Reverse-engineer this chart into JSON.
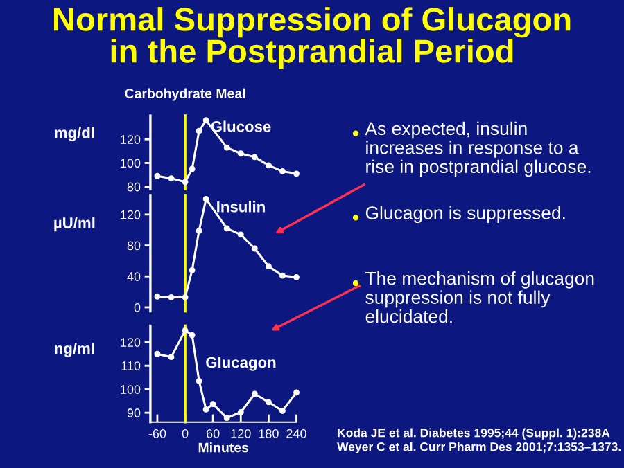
{
  "chart_data": [
    {
      "type": "line",
      "title": "Normal Suppression of Glucagon in the Postprandial Period",
      "ylabel": "mg/dl",
      "xlim": [
        -75,
        240
      ],
      "ylim": [
        78,
        140
      ],
      "yticks": [
        80,
        100,
        120
      ],
      "tick_labels": "y",
      "marker": "circle",
      "line_style": "solid",
      "grid": false,
      "ref_lines": [
        {
          "axis": "x",
          "value": 0,
          "label": "Carbohydrate Meal",
          "color": "#ffff00"
        }
      ],
      "series": [
        {
          "name": "Glucose",
          "color": "#ffffff",
          "x": [
            -60,
            -30,
            0,
            15,
            30,
            45,
            90,
            120,
            150,
            180,
            210,
            240
          ],
          "values": [
            89,
            87,
            84,
            95,
            127,
            136,
            113,
            108,
            105,
            98,
            93,
            91
          ]
        }
      ]
    },
    {
      "type": "line",
      "ylabel": "µU/ml",
      "xlim": [
        -75,
        240
      ],
      "ylim": [
        -5,
        145
      ],
      "yticks": [
        0,
        40,
        80,
        120
      ],
      "tick_labels": "y",
      "marker": "circle",
      "line_style": "solid",
      "grid": false,
      "ref_lines": [
        {
          "axis": "x",
          "value": 0,
          "color": "#ffff00"
        }
      ],
      "series": [
        {
          "name": "Insulin",
          "color": "#ffffff",
          "x": [
            -60,
            -30,
            0,
            15,
            30,
            45,
            90,
            120,
            150,
            180,
            210,
            240
          ],
          "values": [
            14,
            13,
            13,
            48,
            99,
            140,
            102,
            94,
            76,
            53,
            41,
            39
          ]
        }
      ]
    },
    {
      "type": "line",
      "ylabel": "ng/ml",
      "xlabel": "Minutes",
      "xlim": [
        -75,
        240
      ],
      "xticks": [
        -60,
        0,
        60,
        120,
        180,
        240
      ],
      "ylim": [
        86,
        127
      ],
      "yticks": [
        90,
        100,
        110,
        120
      ],
      "marker": "circle",
      "line_style": "solid",
      "grid": false,
      "ref_lines": [
        {
          "axis": "x",
          "value": 0,
          "color": "#ffff00"
        }
      ],
      "series": [
        {
          "name": "Glucagon",
          "color": "#ffffff",
          "x": [
            -60,
            -30,
            0,
            15,
            30,
            45,
            60,
            90,
            120,
            150,
            180,
            210,
            240
          ],
          "values": [
            115,
            113.7,
            125,
            123,
            103.5,
            91.4,
            93.7,
            87.8,
            90.2,
            98,
            94.5,
            90.8,
            98.6
          ]
        }
      ]
    },
    {
      "type": "other",
      "annotations": [
        "As expected, insulin increases in response to a rise in postprandial glucose.",
        "Glucagon is suppressed.",
        "The mechanism of glucagon suppression is not fully elucidated.",
        "Koda JE et al. Diabetes 1995;44 (Suppl. 1):238A",
        "Weyer C et al. Curr Pharm Des 2001;7:1353–1373."
      ]
    }
  ]
}
